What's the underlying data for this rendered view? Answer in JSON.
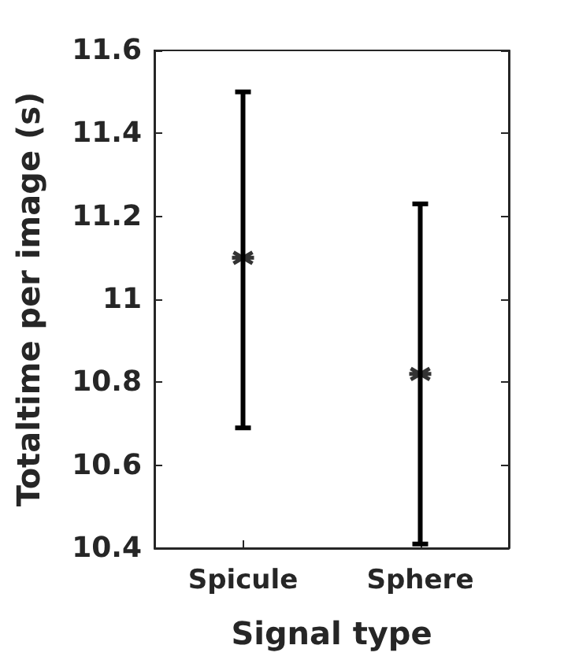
{
  "chart_data": {
    "type": "scatter",
    "xlabel": "Signal type",
    "ylabel": "Totaltime per image (s)",
    "categories": [
      "Spicule",
      "Sphere"
    ],
    "series": [
      {
        "color": "#000000",
        "values": [
          11.1,
          10.82
        ],
        "errors": [
          [
            10.69,
            11.5
          ],
          [
            10.41,
            11.23
          ]
        ]
      }
    ],
    "ylim": [
      10.4,
      11.6
    ],
    "yticks": [
      10.4,
      10.6,
      10.8,
      11,
      11.2,
      11.4,
      11.6
    ],
    "marker": "cross",
    "grid": false
  }
}
